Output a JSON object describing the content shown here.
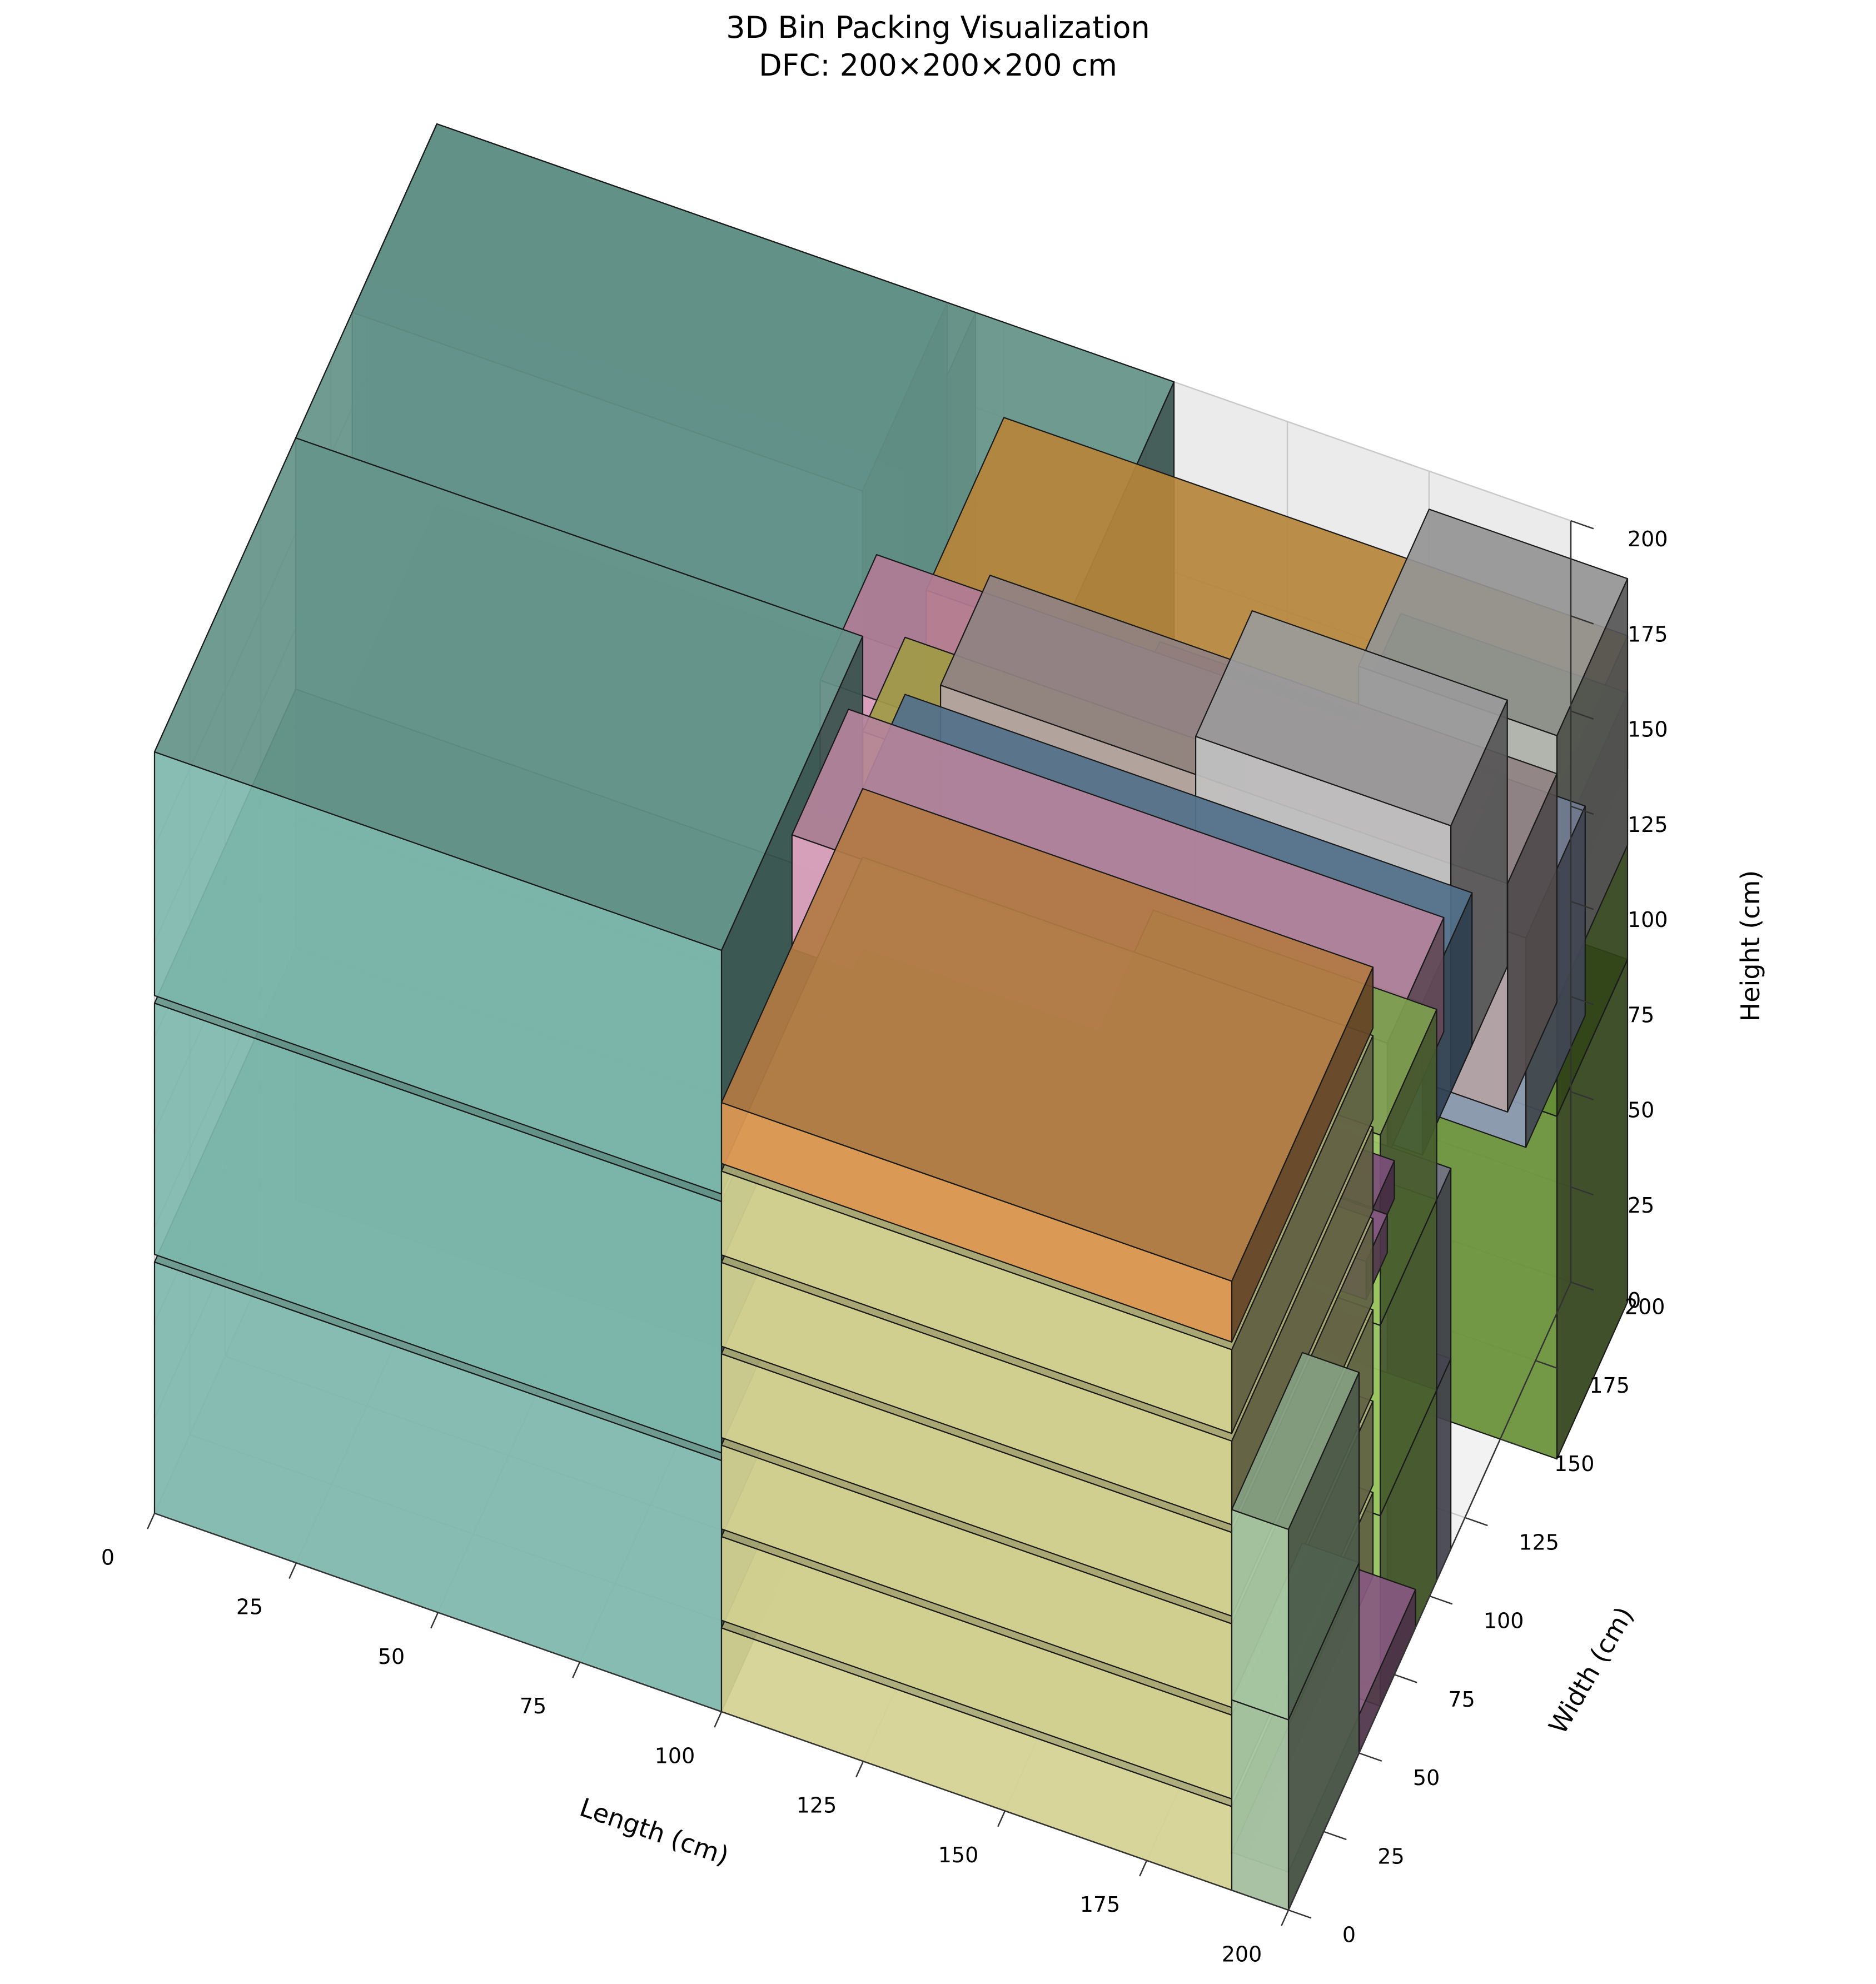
{
  "chart_data": {
    "type": "3d-box",
    "title": "3D Bin Packing Visualization",
    "subtitle": "DFC: 200×200×200 cm",
    "xlabel": "Length (cm)",
    "ylabel": "Width (cm)",
    "zlabel": "Height (cm)",
    "xlim": [
      0,
      200
    ],
    "ylim": [
      0,
      200
    ],
    "zlim": [
      0,
      200
    ],
    "xticks": [
      "0",
      "25",
      "50",
      "75",
      "100",
      "125",
      "150",
      "175",
      "200"
    ],
    "yticks": [
      "0",
      "25",
      "50",
      "75",
      "100",
      "125",
      "150",
      "175",
      "200"
    ],
    "zticks": [
      "0",
      "25",
      "50",
      "75",
      "100",
      "125",
      "150",
      "175",
      "200"
    ],
    "grid": true,
    "boxes": [
      {
        "x": [
          105,
          210
        ],
        "y": [
          128,
          170
        ],
        "z": [
          100,
          155
        ],
        "color": "#9aa7c7"
      },
      {
        "x": [
          0,
          90
        ],
        "y": [
          140,
          200
        ],
        "z": [
          100,
          200
        ],
        "color": "#7aa6c2"
      },
      {
        "x": [
          100,
          210
        ],
        "y": [
          145,
          200
        ],
        "z": [
          140,
          175
        ],
        "color": "#f5b24e"
      },
      {
        "x": [
          0,
          95
        ],
        "y": [
          150,
          200
        ],
        "z": [
          120,
          200
        ],
        "color": "#bdbdbd"
      },
      {
        "x": [
          110,
          210
        ],
        "y": [
          115,
          150
        ],
        "z": [
          120,
          180
        ],
        "color": "#c2b0b0"
      },
      {
        "x": [
          170,
          210
        ],
        "y": [
          150,
          200
        ],
        "z": [
          0,
          90
        ],
        "color": "#6f9a3a"
      },
      {
        "x": [
          170,
          210
        ],
        "y": [
          150,
          200
        ],
        "z": [
          90,
          160
        ],
        "color": "#6f9a3a"
      },
      {
        "x": [
          175,
          210
        ],
        "y": [
          150,
          200
        ],
        "z": [
          120,
          190
        ],
        "color": "#c8c8c8"
      },
      {
        "x": [
          130,
          175
        ],
        "y": [
          120,
          190
        ],
        "z": [
          0,
          140
        ],
        "color": "#e3675a"
      },
      {
        "x": [
          155,
          200
        ],
        "y": [
          115,
          155
        ],
        "z": [
          120,
          190
        ],
        "color": "#d0d0d0"
      },
      {
        "x": [
          90,
          200
        ],
        "y": [
          110,
          150
        ],
        "z": [
          140,
          175
        ],
        "color": "#f0a8cc"
      },
      {
        "x": [
          140,
          180
        ],
        "y": [
          100,
          130
        ],
        "z": [
          0,
          120
        ],
        "color": "#8a8aa8"
      },
      {
        "x": [
          100,
          160
        ],
        "y": [
          100,
          130
        ],
        "z": [
          150,
          175
        ],
        "color": "#d8d060"
      },
      {
        "x": [
          100,
          200
        ],
        "y": [
          95,
          130
        ],
        "z": [
          120,
          160
        ],
        "color": "#6e97ba"
      },
      {
        "x": [
          0,
          130
        ],
        "y": [
          100,
          200
        ],
        "z": [
          0,
          100
        ],
        "color": "#86c5b8"
      },
      {
        "x": [
          0,
          130
        ],
        "y": [
          100,
          200
        ],
        "z": [
          100,
          200
        ],
        "color": "#86c5b8"
      },
      {
        "x": [
          125,
          200
        ],
        "y": [
          70,
          115
        ],
        "z": [
          0,
          50
        ],
        "color": "#9a9ab5"
      },
      {
        "x": [
          125,
          200
        ],
        "y": [
          70,
          115
        ],
        "z": [
          50,
          100
        ],
        "color": "#9a9ab5"
      },
      {
        "x": [
          150,
          200
        ],
        "y": [
          65,
          105
        ],
        "z": [
          0,
          50
        ],
        "color": "#a8d86a"
      },
      {
        "x": [
          150,
          200
        ],
        "y": [
          65,
          105
        ],
        "z": [
          50,
          100
        ],
        "color": "#a8d86a"
      },
      {
        "x": [
          150,
          200
        ],
        "y": [
          65,
          105
        ],
        "z": [
          100,
          150
        ],
        "color": "#a8d86a"
      },
      {
        "x": [
          95,
          200
        ],
        "y": [
          70,
          110
        ],
        "z": [
          140,
          170
        ],
        "color": "#f4b1d2"
      },
      {
        "x": [
          100,
          200
        ],
        "y": [
          60,
          75
        ],
        "z": [
          125,
          135
        ],
        "color": "#a86aa5"
      },
      {
        "x": [
          100,
          200
        ],
        "y": [
          55,
          70
        ],
        "z": [
          115,
          125
        ],
        "color": "#b77bb2"
      },
      {
        "x": [
          0,
          100
        ],
        "y": [
          0,
          100
        ],
        "z": [
          0,
          66
        ],
        "color": "#86c5b8"
      },
      {
        "x": [
          0,
          100
        ],
        "y": [
          0,
          100
        ],
        "z": [
          68,
          134
        ],
        "color": "#86c5b8"
      },
      {
        "x": [
          0,
          100
        ],
        "y": [
          0,
          100
        ],
        "z": [
          136,
          200
        ],
        "color": "#86c5b8"
      },
      {
        "x": [
          100,
          190
        ],
        "y": [
          50,
          100
        ],
        "z": [
          0,
          100
        ],
        "color": "#ecdf58"
      },
      {
        "x": [
          100,
          190
        ],
        "y": [
          0,
          100
        ],
        "z": [
          0,
          22
        ],
        "color": "#e5e39e"
      },
      {
        "x": [
          100,
          190
        ],
        "y": [
          0,
          100
        ],
        "z": [
          24,
          46
        ],
        "color": "#e5e39e"
      },
      {
        "x": [
          100,
          190
        ],
        "y": [
          0,
          100
        ],
        "z": [
          48,
          70
        ],
        "color": "#e5e39e"
      },
      {
        "x": [
          100,
          190
        ],
        "y": [
          0,
          100
        ],
        "z": [
          72,
          94
        ],
        "color": "#e5e39e"
      },
      {
        "x": [
          100,
          190
        ],
        "y": [
          0,
          100
        ],
        "z": [
          96,
          118
        ],
        "color": "#e5e39e"
      },
      {
        "x": [
          100,
          190
        ],
        "y": [
          0,
          100
        ],
        "z": [
          120,
          142
        ],
        "color": "#e5e39e"
      },
      {
        "x": [
          100,
          190
        ],
        "y": [
          0,
          100
        ],
        "z": [
          144,
          160
        ],
        "color": "#f0a35a"
      },
      {
        "x": [
          190,
          200
        ],
        "y": [
          0,
          50
        ],
        "z": [
          0,
          50
        ],
        "color": "#b5d8b0"
      },
      {
        "x": [
          190,
          200
        ],
        "y": [
          0,
          50
        ],
        "z": [
          50,
          100
        ],
        "color": "#b5d8b0"
      },
      {
        "x": [
          190,
          200
        ],
        "y": [
          0,
          90
        ],
        "z": [
          0,
          10
        ],
        "color": "#b777ad"
      }
    ]
  }
}
